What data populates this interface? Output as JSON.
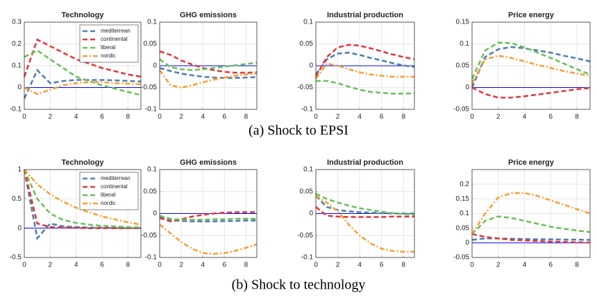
{
  "chart_data": [
    {
      "type": "line",
      "title": "Technology",
      "xlim": [
        0,
        9
      ],
      "xticks": [
        0,
        2,
        4,
        6,
        8
      ],
      "ylim": [
        -0.1,
        0.3
      ],
      "yticks": [
        -0.1,
        0,
        0.1,
        0.2,
        0.3
      ],
      "x": [
        0,
        1,
        2,
        3,
        4,
        5,
        6,
        7,
        8,
        9
      ],
      "legend": "upper right",
      "zero_line": true,
      "series": [
        {
          "name": "mediterrean",
          "color": "#4f7fae",
          "values": [
            -0.05,
            0.08,
            0.02,
            0.03,
            0.035,
            0.035,
            0.035,
            0.033,
            0.03,
            0.028
          ]
        },
        {
          "name": "continental",
          "color": "#e2383f",
          "values": [
            0.05,
            0.22,
            0.19,
            0.16,
            0.13,
            0.11,
            0.09,
            0.075,
            0.06,
            0.05
          ]
        },
        {
          "name": "liberal",
          "color": "#6cc05a",
          "values": [
            0.14,
            0.17,
            0.13,
            0.09,
            0.05,
            0.03,
            0.01,
            -0.005,
            -0.02,
            -0.035
          ]
        },
        {
          "name": "nordic",
          "color": "#f7a035",
          "values": [
            0.0,
            -0.03,
            -0.01,
            0.01,
            0.02,
            0.025,
            0.025,
            0.02,
            0.018,
            0.015
          ]
        }
      ]
    },
    {
      "type": "line",
      "title": "GHG emissions",
      "xlim": [
        0,
        9
      ],
      "xticks": [
        0,
        2,
        4,
        6,
        8
      ],
      "ylim": [
        -0.1,
        0.1
      ],
      "yticks": [
        -0.1,
        -0.05,
        0,
        0.05,
        0.1
      ],
      "x": [
        0,
        1,
        2,
        3,
        4,
        5,
        6,
        7,
        8,
        9
      ],
      "zero_line": true,
      "series": [
        {
          "color": "#4f7fae",
          "values": [
            -0.005,
            -0.012,
            -0.018,
            -0.022,
            -0.025,
            -0.027,
            -0.028,
            -0.028,
            -0.027,
            -0.026
          ]
        },
        {
          "color": "#e2383f",
          "values": [
            0.033,
            0.025,
            0.012,
            0.003,
            -0.005,
            -0.01,
            -0.014,
            -0.016,
            -0.016,
            -0.015
          ]
        },
        {
          "color": "#6cc05a",
          "values": [
            0.015,
            -0.003,
            -0.008,
            -0.01,
            -0.008,
            -0.005,
            -0.002,
            0.001,
            0.004,
            0.007
          ]
        },
        {
          "color": "#f7a035",
          "values": [
            -0.01,
            -0.045,
            -0.05,
            -0.045,
            -0.038,
            -0.032,
            -0.027,
            -0.023,
            -0.02,
            -0.018
          ]
        }
      ]
    },
    {
      "type": "line",
      "title": "Industrial production",
      "xlim": [
        0,
        9
      ],
      "xticks": [
        0,
        2,
        4,
        6,
        8
      ],
      "ylim": [
        -0.1,
        0.1
      ],
      "yticks": [
        -0.1,
        -0.05,
        0,
        0.05,
        0.1
      ],
      "x": [
        0,
        1,
        2,
        3,
        4,
        5,
        6,
        7,
        8,
        9
      ],
      "zero_line": true,
      "series": [
        {
          "color": "#4f7fae",
          "values": [
            -0.02,
            0.015,
            0.028,
            0.03,
            0.025,
            0.018,
            0.012,
            0.006,
            0.001,
            -0.003
          ]
        },
        {
          "color": "#e2383f",
          "values": [
            -0.025,
            0.02,
            0.042,
            0.048,
            0.046,
            0.04,
            0.033,
            0.026,
            0.02,
            0.015
          ]
        },
        {
          "color": "#6cc05a",
          "values": [
            -0.035,
            -0.035,
            -0.04,
            -0.048,
            -0.055,
            -0.06,
            -0.062,
            -0.064,
            -0.064,
            -0.063
          ]
        },
        {
          "color": "#f7a035",
          "values": [
            -0.03,
            0.005,
            0.0,
            -0.008,
            -0.015,
            -0.02,
            -0.023,
            -0.025,
            -0.025,
            -0.025
          ]
        }
      ]
    },
    {
      "type": "line",
      "title": "Price energy",
      "xlim": [
        0,
        9
      ],
      "xticks": [
        0,
        2,
        4,
        6,
        8
      ],
      "ylim": [
        -0.05,
        0.15
      ],
      "yticks": [
        -0.05,
        0,
        0.05,
        0.1,
        0.15
      ],
      "x": [
        0,
        1,
        2,
        3,
        4,
        5,
        6,
        7,
        8,
        9
      ],
      "zero_line": true,
      "series": [
        {
          "color": "#4f7fae",
          "values": [
            0.0,
            0.07,
            0.088,
            0.093,
            0.09,
            0.085,
            0.08,
            0.073,
            0.067,
            0.06
          ]
        },
        {
          "color": "#e2383f",
          "values": [
            0.0,
            -0.015,
            -0.023,
            -0.023,
            -0.02,
            -0.016,
            -0.012,
            -0.008,
            -0.004,
            -0.001
          ]
        },
        {
          "color": "#6cc05a",
          "values": [
            0.02,
            0.085,
            0.103,
            0.102,
            0.092,
            0.08,
            0.068,
            0.055,
            0.042,
            0.03
          ]
        },
        {
          "color": "#f7a035",
          "values": [
            0.01,
            0.065,
            0.073,
            0.068,
            0.06,
            0.052,
            0.045,
            0.038,
            0.032,
            0.027
          ]
        }
      ]
    },
    {
      "type": "line",
      "title": "Technology",
      "xlim": [
        0,
        9
      ],
      "xticks": [
        0,
        2,
        4,
        6,
        8
      ],
      "ylim": [
        -0.5,
        1
      ],
      "yticks": [
        -0.5,
        0,
        0.5,
        1
      ],
      "x": [
        0,
        1,
        2,
        3,
        4,
        5,
        6,
        7,
        8,
        9
      ],
      "legend": "upper right",
      "zero_line": true,
      "series": [
        {
          "name": "mediterrean",
          "color": "#4f7fae",
          "values": [
            1,
            -0.17,
            0.08,
            0.03,
            0.02,
            0.01,
            0.01,
            0.005,
            0.0,
            0.0
          ]
        },
        {
          "name": "continental",
          "color": "#e2383f",
          "values": [
            1,
            0.08,
            0.02,
            0.01,
            0.005,
            0,
            0,
            0,
            0,
            0
          ]
        },
        {
          "name": "liberal",
          "color": "#6cc05a",
          "values": [
            1,
            0.5,
            0.25,
            0.14,
            0.09,
            0.06,
            0.04,
            0.03,
            0.02,
            0.015
          ]
        },
        {
          "name": "nordic",
          "color": "#f7a035",
          "values": [
            1,
            0.75,
            0.58,
            0.45,
            0.35,
            0.27,
            0.2,
            0.15,
            0.1,
            0.06
          ]
        }
      ]
    },
    {
      "type": "line",
      "title": "GHG emissions",
      "xlim": [
        0,
        9
      ],
      "xticks": [
        0,
        2,
        4,
        6,
        8
      ],
      "ylim": [
        -0.1,
        0.1
      ],
      "yticks": [
        -0.1,
        -0.05,
        0,
        0.05,
        0.1
      ],
      "x": [
        0,
        1,
        2,
        3,
        4,
        5,
        6,
        7,
        8,
        9
      ],
      "zero_line": true,
      "series": [
        {
          "color": "#4f7fae",
          "values": [
            -0.008,
            -0.015,
            -0.017,
            -0.018,
            -0.018,
            -0.018,
            -0.017,
            -0.017,
            -0.016,
            -0.016
          ]
        },
        {
          "color": "#e2383f",
          "values": [
            -0.01,
            -0.018,
            -0.013,
            -0.007,
            -0.003,
            0.0,
            0.002,
            0.003,
            0.003,
            0.003
          ]
        },
        {
          "color": "#6cc05a",
          "values": [
            -0.005,
            -0.012,
            -0.014,
            -0.014,
            -0.014,
            -0.013,
            -0.013,
            -0.012,
            -0.012,
            -0.012
          ]
        },
        {
          "color": "#f7a035",
          "values": [
            -0.025,
            -0.045,
            -0.065,
            -0.08,
            -0.09,
            -0.092,
            -0.09,
            -0.085,
            -0.078,
            -0.07
          ]
        }
      ]
    },
    {
      "type": "line",
      "title": "Industrial production",
      "xlim": [
        0,
        9
      ],
      "xticks": [
        0,
        2,
        4,
        6,
        8
      ],
      "ylim": [
        -0.1,
        0.1
      ],
      "yticks": [
        -0.1,
        -0.05,
        0,
        0.05,
        0.1
      ],
      "x": [
        0,
        1,
        2,
        3,
        4,
        5,
        6,
        7,
        8,
        9
      ],
      "zero_line": true,
      "series": [
        {
          "color": "#4f7fae",
          "values": [
            0.04,
            0.015,
            0.008,
            0.005,
            0.003,
            0.002,
            0.001,
            0.0,
            0.0,
            0.0
          ]
        },
        {
          "color": "#e2383f",
          "values": [
            0.015,
            -0.005,
            -0.007,
            -0.008,
            -0.008,
            -0.008,
            -0.008,
            -0.007,
            -0.007,
            -0.007
          ]
        },
        {
          "color": "#6cc05a",
          "values": [
            0.045,
            0.033,
            0.025,
            0.018,
            0.012,
            0.008,
            0.004,
            0.001,
            -0.001,
            -0.003
          ]
        },
        {
          "color": "#f7a035",
          "values": [
            0.04,
            0.025,
            0.005,
            -0.025,
            -0.05,
            -0.068,
            -0.08,
            -0.085,
            -0.087,
            -0.087
          ]
        }
      ]
    },
    {
      "type": "line",
      "title": "Price energy",
      "xlim": [
        0,
        9
      ],
      "xticks": [
        0,
        2,
        4,
        6,
        8
      ],
      "ylim": [
        -0.05,
        0.25
      ],
      "yticks": [
        -0.05,
        0,
        0.05,
        0.1,
        0.15,
        0.2
      ],
      "x": [
        0,
        1,
        2,
        3,
        4,
        5,
        6,
        7,
        8,
        9
      ],
      "zero_line": true,
      "series": [
        {
          "color": "#4f7fae",
          "values": [
            0.01,
            0.015,
            0.015,
            0.014,
            0.013,
            0.012,
            0.012,
            0.011,
            0.011,
            0.01
          ]
        },
        {
          "color": "#e2383f",
          "values": [
            0.03,
            0.02,
            0.015,
            0.01,
            0.008,
            0.006,
            0.004,
            0.003,
            0.002,
            0.001
          ]
        },
        {
          "color": "#6cc05a",
          "values": [
            0.03,
            0.075,
            0.09,
            0.085,
            0.075,
            0.065,
            0.055,
            0.048,
            0.042,
            0.037
          ]
        },
        {
          "color": "#f7a035",
          "values": [
            0.03,
            0.1,
            0.155,
            0.17,
            0.17,
            0.16,
            0.145,
            0.13,
            0.115,
            0.1
          ]
        }
      ]
    }
  ],
  "captions": [
    "(a) Shock to EPSI",
    "(b) Shock to technology"
  ]
}
